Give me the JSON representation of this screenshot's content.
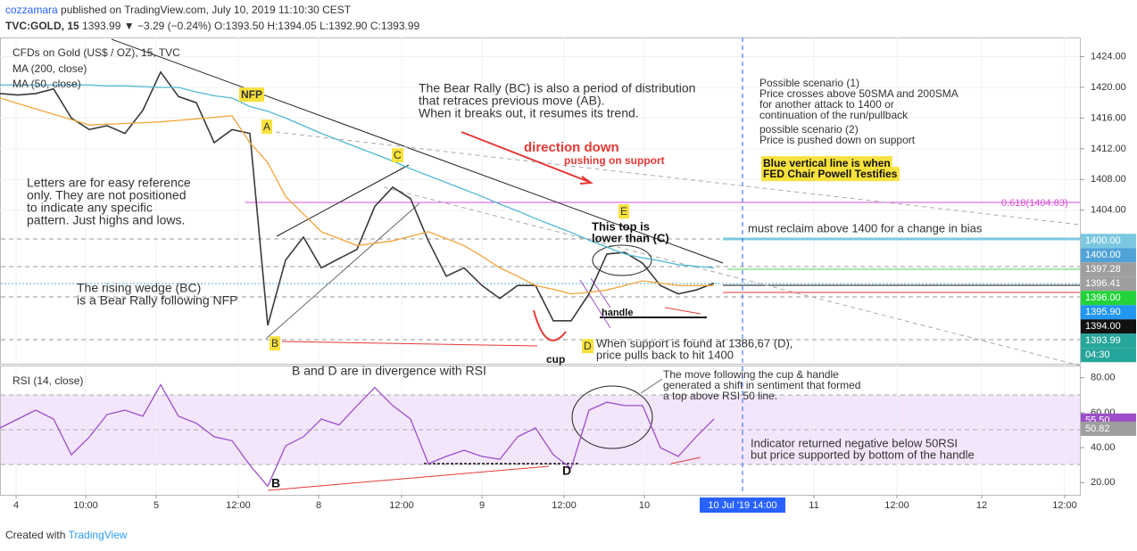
{
  "header": {
    "user": "cozzamara",
    "published": "published on TradingView.com, July 10, 2019 11:10:30 CEST",
    "symbol": "TVC:GOLD, 15",
    "quote": "1393.99 ▼ −3.29 (−0.24%) O:1393.50 H:1394.05 L:1392.90 C:1393.99"
  },
  "footer": {
    "created": "Created with",
    "brand": "TradingView"
  },
  "chart_data": [
    {
      "type": "line",
      "x": [
        0,
        10,
        20,
        30,
        40,
        50,
        60,
        70,
        80,
        90,
        100,
        110,
        120,
        130,
        140,
        150,
        160,
        170,
        180,
        190,
        200,
        210,
        220,
        230,
        240,
        250,
        260,
        270,
        280,
        290,
        300,
        310,
        320,
        330,
        340,
        350,
        360,
        370,
        380,
        390,
        400
      ],
      "xlim": [
        0,
        605
      ],
      "xticks": [
        {
          "value": 9,
          "label": "4"
        },
        {
          "value": 48,
          "label": "10:00"
        },
        {
          "value": 87.5,
          "label": "5"
        },
        {
          "value": 133.5,
          "label": "12:00"
        },
        {
          "value": 178.5,
          "label": "8"
        },
        {
          "value": 225,
          "label": "12:00"
        },
        {
          "value": 270,
          "label": "9"
        },
        {
          "value": 316,
          "label": "12:00"
        },
        {
          "value": 361,
          "label": "10"
        },
        {
          "value": 456,
          "label": "11"
        },
        {
          "value": 502.5,
          "label": "12:00"
        },
        {
          "value": 550,
          "label": "12"
        },
        {
          "value": 596.5,
          "label": "12:00"
        }
      ],
      "crosshair": {
        "value": 416,
        "label": "10 Jul '19  14:00",
        "color": "#2962ff"
      },
      "ylim": [
        1384,
        1426.5
      ],
      "yticks": [
        {
          "value": 1404,
          "label": "1404.00"
        },
        {
          "value": 1408,
          "label": "1408.00"
        },
        {
          "value": 1412,
          "label": "1412.00"
        },
        {
          "value": 1416,
          "label": "1416.00"
        },
        {
          "value": 1420,
          "label": "1420.00"
        },
        {
          "value": 1424,
          "label": "1424.00"
        }
      ],
      "grid": true,
      "series": [
        {
          "name": "CFDs on Gold (US$ / OZ), 15, TVC",
          "color": "#3a3a3a",
          "values": [
            1419.2,
            1419.0,
            1419.2,
            1419.8,
            1416,
            1414.5,
            1415,
            1414.0,
            1417,
            1422.0,
            1418.8,
            1418,
            1412.8,
            1414.5,
            1414.0,
            1389.0,
            1397.5,
            1400.5,
            1396.5,
            1397.7,
            1398.9,
            1404.5,
            1407.0,
            1405.5,
            1400.0,
            1395.4,
            1396.5,
            1394.2,
            1392.5,
            1394.2,
            1394.2,
            1389.6,
            1389.6,
            1393.1,
            1398.3,
            1398.5,
            1397.1,
            1394.2,
            1393.1,
            1393.6,
            1394.5
          ]
        },
        {
          "name": "MA (200, close)",
          "color": "#4fb8d3",
          "values": [
            1420.3,
            1420.3,
            1420.3,
            1420.3,
            1420.3,
            1420.3,
            1420.2,
            1420.2,
            1420.1,
            1420.0,
            1420.0,
            1419.4,
            1418.9,
            1418.6,
            1417.5,
            1416.9,
            1416.0,
            1415.0,
            1414.0,
            1413.1,
            1412.2,
            1411.3,
            1410.4,
            1409.4,
            1408.5,
            1407.6,
            1406.7,
            1405.8,
            1404.8,
            1403.9,
            1402.9,
            1402.0,
            1401.1,
            1400.1,
            1399.2,
            1398.3,
            1397.8,
            1397.4,
            1396.9,
            1396.7,
            1396.5
          ]
        },
        {
          "name": "MA (50, close)",
          "color": "#f2a43a",
          "values": [
            1418.6,
            1417.9,
            1417.2,
            1416.5,
            1415.8,
            1415.1,
            1415.2,
            1415.3,
            1415.4,
            1415.5,
            1415.7,
            1415.9,
            1416.1,
            1416.3,
            1412.8,
            1410.2,
            1405.8,
            1403.5,
            1401.2,
            1400.3,
            1399.4,
            1399.7,
            1400.0,
            1400.6,
            1401.2,
            1400.3,
            1399.4,
            1398.0,
            1396.5,
            1395.4,
            1394.2,
            1393.7,
            1393.1,
            1393.3,
            1393.6,
            1394.2,
            1394.8,
            1394.5,
            1394.2,
            1394.2,
            1394.2
          ]
        }
      ],
      "price_labels": [
        {
          "value": 1400.0,
          "label": "1400.00",
          "color": "#7cc8e0"
        },
        {
          "value": 1400.0,
          "label": "1400.00",
          "color": "#4fa3d8",
          "offset": 1
        },
        {
          "value": 1397.28,
          "label": "1397.28",
          "color": "#9e9e9e"
        },
        {
          "value": 1396.41,
          "label": "1396.41",
          "color": "#9e9e9e"
        },
        {
          "value": 1396.0,
          "label": "1396.00",
          "color": "#22d43a"
        },
        {
          "value": 1395.9,
          "label": "1395.90",
          "color": "#2196f3"
        },
        {
          "value": 1394.0,
          "label": "1394.00",
          "color": "#111111"
        },
        {
          "value": 1393.99,
          "label": "1393.99",
          "color": "#26a69a"
        }
      ],
      "countdown": "04:30"
    },
    {
      "type": "line",
      "title": "RSI (14, close)",
      "x": [
        0,
        10,
        20,
        30,
        40,
        50,
        60,
        70,
        80,
        90,
        100,
        110,
        120,
        130,
        140,
        150,
        160,
        170,
        180,
        190,
        200,
        210,
        220,
        230,
        240,
        250,
        260,
        270,
        280,
        290,
        300,
        310,
        320,
        330,
        340,
        350,
        360,
        370,
        380,
        390,
        400
      ],
      "xlim": [
        0,
        605
      ],
      "ylim": [
        13,
        87
      ],
      "yticks": [
        {
          "value": 20,
          "label": "20.00"
        },
        {
          "value": 40,
          "label": "40.00"
        },
        {
          "value": 60,
          "label": "60.00"
        },
        {
          "value": 80,
          "label": "80.00"
        }
      ],
      "series": [
        {
          "name": "RSI (14, close)",
          "color": "#9c4fc9",
          "values": [
            51.3,
            56.4,
            61.5,
            56.4,
            35.9,
            46,
            59,
            61.5,
            58,
            76,
            58,
            54,
            46.2,
            44,
            30,
            17.9,
            41.0,
            46.2,
            56.4,
            53,
            64,
            74.4,
            64.1,
            56.4,
            30.8,
            35,
            38.5,
            35,
            33.3,
            46.2,
            51.3,
            35.9,
            28.2,
            61.5,
            66,
            64.1,
            64.1,
            40,
            35,
            46.2,
            56.4
          ]
        }
      ],
      "value_labels": [
        {
          "value": 55.5,
          "label": "55.50",
          "color": "#9c4fc9"
        },
        {
          "value": 50.82,
          "label": "50.82",
          "color": "#9e9e9e"
        }
      ]
    }
  ],
  "annotations": [
    "NFP",
    "A",
    "C",
    "E",
    "B",
    "D",
    "The Bear Rally (BC) is also a period of distribution",
    "that retraces previous move (AB).",
    "When it breaks out, it resumes its trend.",
    "direction down",
    "pushing on support",
    "Letters are for easy reference",
    "only. They are not positioned",
    "to indicate any specific",
    "pattern. Just highs and lows.",
    "This top is",
    "lower than (C)",
    "The rising wedge (BC)",
    "is a Bear Rally following NFP",
    "handle",
    "cup",
    "When support is found at 1386,67 (D),",
    "price pulls back to hit 1400",
    "Possible scenario (1)",
    "Price crosses above 50SMA and 200SMA",
    "for another attack to 1400 or",
    "continuation of the run/pullback",
    "possible scenario (2)",
    "Price is pushed down on support",
    "Blue vertical line is when",
    "FED Chair Powell Testifies",
    "0.618(1404.83)",
    "must reclaim above 1400 for a change in bias",
    "B and D are in divergence with RSI",
    "The move following the cup & handle",
    "generated a shift in sentiment that formed",
    "a top above RSI 50 line.",
    "Indicator returned negative below 50RSI",
    "but price supported by bottom of the handle",
    "B",
    "D"
  ]
}
